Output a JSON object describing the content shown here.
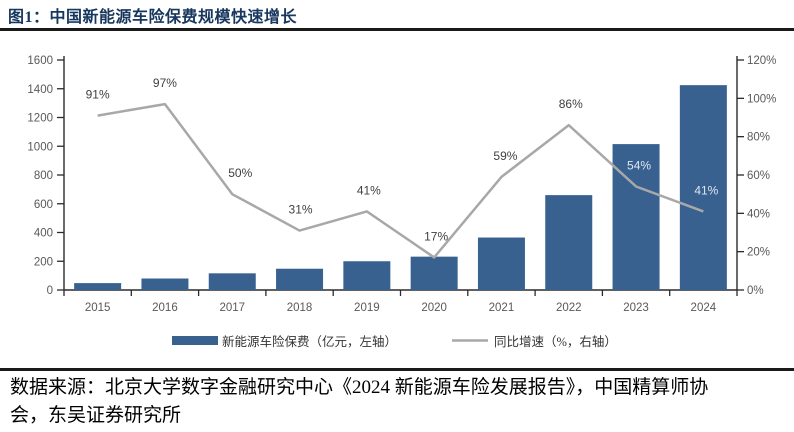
{
  "header": {
    "title": "图1：中国新能源车险保费规模快速增长"
  },
  "chart_data": {
    "type": "bar+line",
    "title": "中国新能源车险保费规模快速增长",
    "categories": [
      "2015",
      "2016",
      "2017",
      "2018",
      "2019",
      "2020",
      "2021",
      "2022",
      "2023",
      "2024"
    ],
    "series": [
      {
        "name": "新能源车险保费（亿元，左轴）",
        "type": "bar",
        "axis": "left",
        "values": [
          48,
          80,
          116,
          148,
          200,
          232,
          365,
          660,
          1015,
          1425
        ]
      },
      {
        "name": "同比增速（%，右轴）",
        "type": "line",
        "axis": "right",
        "values": [
          91,
          97,
          50,
          31,
          41,
          17,
          59,
          86,
          54,
          41
        ],
        "point_labels": [
          "91%",
          "97%",
          "50%",
          "31%",
          "41%",
          "17%",
          "59%",
          "86%",
          "54%",
          "41%"
        ]
      }
    ],
    "left_axis": {
      "min": 0,
      "max": 1600,
      "step": 200,
      "tick_labels": [
        "0",
        "200",
        "400",
        "600",
        "800",
        "1000",
        "1200",
        "1400",
        "1600"
      ]
    },
    "right_axis": {
      "min": 0,
      "max": 120,
      "step": 20,
      "tick_labels": [
        "0%",
        "20%",
        "40%",
        "60%",
        "80%",
        "100%",
        "120%"
      ]
    },
    "grid": false,
    "legend_position": "bottom"
  },
  "colors": {
    "bar": "#39618F",
    "line": "#A8A8A8",
    "title": "#17375E",
    "rule": "#1A1A1A",
    "axis": "#2B2B2B",
    "tick_label": "#595959",
    "data_label": "#404040",
    "data_label_on_bar": "#DEE6F1",
    "legend_text": "#333333"
  },
  "source": {
    "text": "数据来源：北京大学数字金融研究中心《2024 新能源车险发展报告》，中国精算师协会，东吴证券研究所"
  }
}
